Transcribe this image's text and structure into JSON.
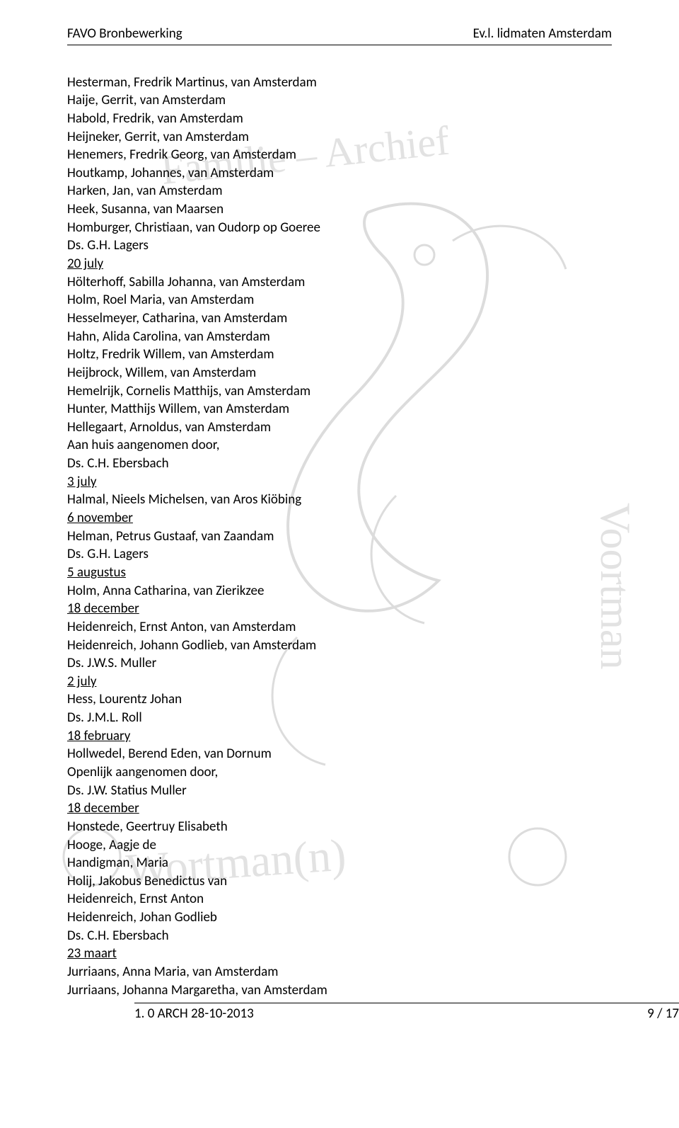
{
  "header": {
    "left": "FAVO Bronbewerking",
    "right": "Ev.l. lidmaten Amsterdam"
  },
  "footer": {
    "left": "1. 0 ARCH 28-10-2013",
    "right": "9 / 17"
  },
  "lines": [
    {
      "text": "Hesterman, Fredrik Martinus, van Amsterdam",
      "type": "entry"
    },
    {
      "text": "Haije, Gerrit, van Amsterdam",
      "type": "entry"
    },
    {
      "text": "Habold, Fredrik, van Amsterdam",
      "type": "entry"
    },
    {
      "text": "Heijneker, Gerrit, van Amsterdam",
      "type": "entry"
    },
    {
      "text": "Henemers, Fredrik Georg, van Amsterdam",
      "type": "entry"
    },
    {
      "text": "Houtkamp, Johannes, van Amsterdam",
      "type": "entry"
    },
    {
      "text": "Harken, Jan, van Amsterdam",
      "type": "entry"
    },
    {
      "text": "Heek, Susanna, van Maarsen",
      "type": "entry"
    },
    {
      "text": "Homburger, Christiaan, van Oudorp op Goeree",
      "type": "entry"
    },
    {
      "text": "Ds. G.H. Lagers",
      "type": "entry"
    },
    {
      "text": "20 july",
      "type": "date"
    },
    {
      "text": "Hölterhoff, Sabilla Johanna, van Amsterdam",
      "type": "entry"
    },
    {
      "text": "Holm, Roel Maria, van Amsterdam",
      "type": "entry"
    },
    {
      "text": "Hesselmeyer, Catharina, van Amsterdam",
      "type": "entry"
    },
    {
      "text": "Hahn, Alida Carolina, van Amsterdam",
      "type": "entry"
    },
    {
      "text": "Holtz, Fredrik Willem, van Amsterdam",
      "type": "entry"
    },
    {
      "text": "Heijbrock, Willem, van Amsterdam",
      "type": "entry"
    },
    {
      "text": "Hemelrijk, Cornelis Matthijs, van Amsterdam",
      "type": "entry"
    },
    {
      "text": "Hunter, Matthijs Willem, van Amsterdam",
      "type": "entry"
    },
    {
      "text": "Hellegaart, Arnoldus, van Amsterdam",
      "type": "entry"
    },
    {
      "text": "Aan huis aangenomen door,",
      "type": "entry"
    },
    {
      "text": "Ds. C.H. Ebersbach",
      "type": "entry"
    },
    {
      "text": "3 july",
      "type": "date"
    },
    {
      "text": "Halmal, Nieels Michelsen, van Aros Kiöbing",
      "type": "entry"
    },
    {
      "text": "6 november",
      "type": "date"
    },
    {
      "text": "Helman, Petrus Gustaaf, van Zaandam",
      "type": "entry"
    },
    {
      "text": "Ds. G.H. Lagers",
      "type": "entry"
    },
    {
      "text": "5 augustus",
      "type": "date"
    },
    {
      "text": "Holm, Anna Catharina, van Zierikzee",
      "type": "entry"
    },
    {
      "text": "18 december",
      "type": "date"
    },
    {
      "text": "Heidenreich, Ernst Anton, van Amsterdam",
      "type": "entry"
    },
    {
      "text": "Heidenreich, Johann Godlieb, van Amsterdam",
      "type": "entry"
    },
    {
      "text": "Ds. J.W.S. Muller",
      "type": "entry"
    },
    {
      "text": "2 july",
      "type": "date"
    },
    {
      "text": "Hess, Lourentz Johan",
      "type": "entry"
    },
    {
      "text": "Ds. J.M.L. Roll",
      "type": "entry"
    },
    {
      "text": "18 february",
      "type": "date"
    },
    {
      "text": "Hollwedel, Berend Eden, van Dornum",
      "type": "entry"
    },
    {
      "text": "Openlijk aangenomen door,",
      "type": "entry"
    },
    {
      "text": "Ds. J.W. Statius Muller",
      "type": "entry"
    },
    {
      "text": "18 december",
      "type": "date"
    },
    {
      "text": "Honstede, Geertruy Elisabeth",
      "type": "entry"
    },
    {
      "text": "Hooge, Aagje de",
      "type": "entry"
    },
    {
      "text": "Handigman, Maria",
      "type": "entry"
    },
    {
      "text": "Holij, Jakobus Benedictus van",
      "type": "entry"
    },
    {
      "text": "Heidenreich, Ernst Anton",
      "type": "entry"
    },
    {
      "text": "Heidenreich, Johan Godlieb",
      "type": "entry"
    },
    {
      "text": "Ds. C.H. Ebersbach",
      "type": "entry"
    },
    {
      "text": "23 maart",
      "type": "date"
    },
    {
      "text": "Jurriaans, Anna Maria, van Amsterdam",
      "type": "entry"
    },
    {
      "text": "Jurriaans, Johanna Margaretha, van Amsterdam",
      "type": "entry"
    }
  ],
  "style": {
    "font_family": "Calibri, 'Segoe UI', Arial, sans-serif",
    "font_size_pt": 11,
    "text_color": "#000000",
    "background_color": "#ffffff",
    "watermark_color": "#dcdcdc"
  }
}
